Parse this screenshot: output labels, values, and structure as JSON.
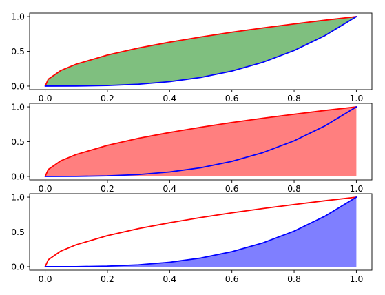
{
  "figure": {
    "background": "#ffffff"
  },
  "chart_data": [
    {
      "type": "area",
      "title": "",
      "xlabel": "",
      "ylabel": "",
      "xlim": [
        -0.05,
        1.05
      ],
      "ylim": [
        -0.05,
        1.05
      ],
      "x_ticks": [
        0.0,
        0.2,
        0.4,
        0.6,
        0.8,
        1.0
      ],
      "x_tick_labels": [
        "0.0",
        "0.2",
        "0.4",
        "0.6",
        "0.8",
        "1.0"
      ],
      "y_ticks": [
        0.0,
        0.5,
        1.0
      ],
      "y_tick_labels": [
        "0.0",
        "0.5",
        "1.0"
      ],
      "grid": false,
      "fill": {
        "between": "upper-and-lower",
        "color": "#008000",
        "alpha": 0.5
      },
      "series": [
        {
          "color": "#ff0000",
          "x": [
            0.0,
            0.01,
            0.05,
            0.1,
            0.2,
            0.3,
            0.4,
            0.5,
            0.6,
            0.7,
            0.8,
            0.9,
            1.0
          ],
          "y": [
            0.0,
            0.1,
            0.224,
            0.316,
            0.447,
            0.548,
            0.632,
            0.707,
            0.775,
            0.837,
            0.894,
            0.949,
            1.0
          ]
        },
        {
          "color": "#0000ff",
          "x": [
            0.0,
            0.1,
            0.2,
            0.3,
            0.4,
            0.5,
            0.6,
            0.7,
            0.8,
            0.9,
            1.0
          ],
          "y": [
            0.0,
            0.001,
            0.008,
            0.027,
            0.064,
            0.125,
            0.216,
            0.343,
            0.512,
            0.729,
            1.0
          ]
        }
      ]
    },
    {
      "type": "area",
      "title": "",
      "xlabel": "",
      "ylabel": "",
      "xlim": [
        -0.05,
        1.05
      ],
      "ylim": [
        -0.05,
        1.05
      ],
      "x_ticks": [
        0.0,
        0.2,
        0.4,
        0.6,
        0.8,
        1.0
      ],
      "x_tick_labels": [
        "0.0",
        "0.2",
        "0.4",
        "0.6",
        "0.8",
        "1.0"
      ],
      "y_ticks": [
        0.0,
        0.5,
        1.0
      ],
      "y_tick_labels": [
        "0.0",
        "0.5",
        "1.0"
      ],
      "grid": false,
      "fill": {
        "between": "upper-and-zero",
        "color": "#ff0000",
        "alpha": 0.5
      },
      "series": [
        {
          "color": "#ff0000",
          "x": [
            0.0,
            0.01,
            0.05,
            0.1,
            0.2,
            0.3,
            0.4,
            0.5,
            0.6,
            0.7,
            0.8,
            0.9,
            1.0
          ],
          "y": [
            0.0,
            0.1,
            0.224,
            0.316,
            0.447,
            0.548,
            0.632,
            0.707,
            0.775,
            0.837,
            0.894,
            0.949,
            1.0
          ]
        },
        {
          "color": "#0000ff",
          "x": [
            0.0,
            0.1,
            0.2,
            0.3,
            0.4,
            0.5,
            0.6,
            0.7,
            0.8,
            0.9,
            1.0
          ],
          "y": [
            0.0,
            0.001,
            0.008,
            0.027,
            0.064,
            0.125,
            0.216,
            0.343,
            0.512,
            0.729,
            1.0
          ]
        }
      ]
    },
    {
      "type": "area",
      "title": "",
      "xlabel": "",
      "ylabel": "",
      "xlim": [
        -0.05,
        1.05
      ],
      "ylim": [
        -0.05,
        1.05
      ],
      "x_ticks": [
        0.0,
        0.2,
        0.4,
        0.6,
        0.8,
        1.0
      ],
      "x_tick_labels": [
        "0.0",
        "0.2",
        "0.4",
        "0.6",
        "0.8",
        "1.0"
      ],
      "y_ticks": [
        0.0,
        0.5,
        1.0
      ],
      "y_tick_labels": [
        "0.0",
        "0.5",
        "1.0"
      ],
      "grid": false,
      "fill": {
        "between": "lower-and-zero",
        "color": "#0000ff",
        "alpha": 0.5
      },
      "series": [
        {
          "color": "#ff0000",
          "x": [
            0.0,
            0.01,
            0.05,
            0.1,
            0.2,
            0.3,
            0.4,
            0.5,
            0.6,
            0.7,
            0.8,
            0.9,
            1.0
          ],
          "y": [
            0.0,
            0.1,
            0.224,
            0.316,
            0.447,
            0.548,
            0.632,
            0.707,
            0.775,
            0.837,
            0.894,
            0.949,
            1.0
          ]
        },
        {
          "color": "#0000ff",
          "x": [
            0.0,
            0.1,
            0.2,
            0.3,
            0.4,
            0.5,
            0.6,
            0.7,
            0.8,
            0.9,
            1.0
          ],
          "y": [
            0.0,
            0.001,
            0.008,
            0.027,
            0.064,
            0.125,
            0.216,
            0.343,
            0.512,
            0.729,
            1.0
          ]
        }
      ]
    }
  ]
}
